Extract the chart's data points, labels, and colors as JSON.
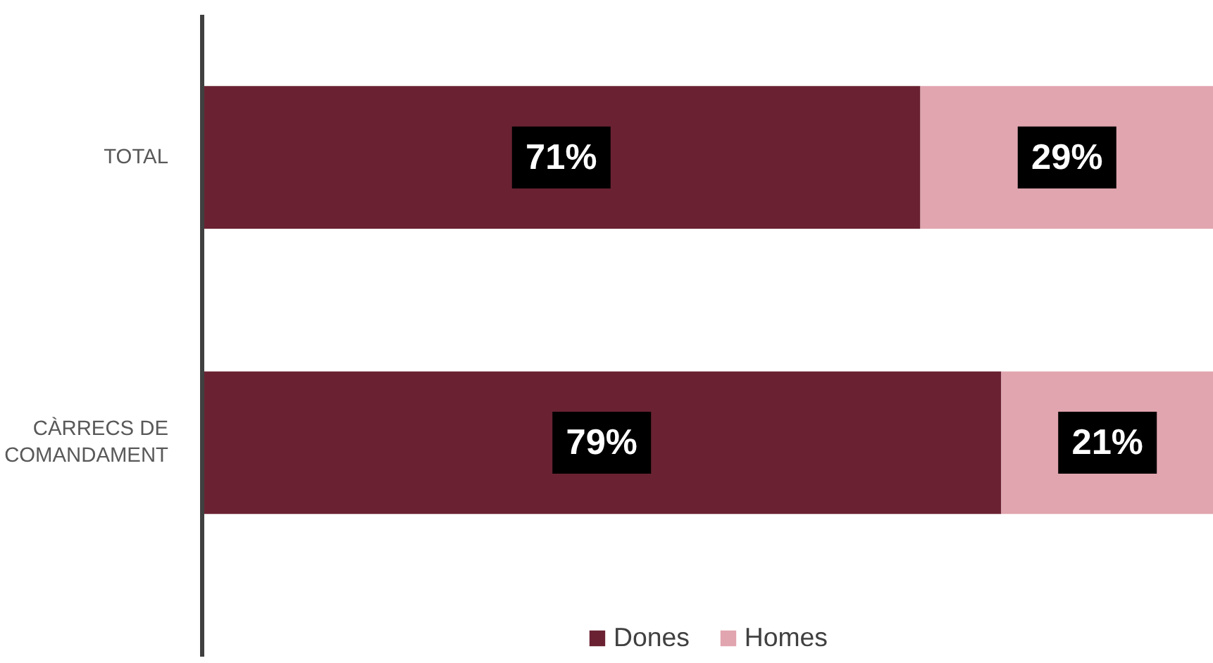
{
  "chart_data": {
    "type": "bar",
    "orientation": "horizontal",
    "stacked": true,
    "categories": [
      "TOTAL",
      "CÀRRECS DE COMANDAMENT"
    ],
    "series": [
      {
        "name": "Dones",
        "color": "#6a2232",
        "values": [
          71,
          79
        ],
        "value_labels": [
          "71%",
          "79%"
        ]
      },
      {
        "name": "Homes",
        "color": "#e1a5af",
        "values": [
          29,
          21
        ],
        "value_labels": [
          "29%",
          "21%"
        ]
      }
    ],
    "legend": "bottom",
    "tick_labels": "y"
  }
}
